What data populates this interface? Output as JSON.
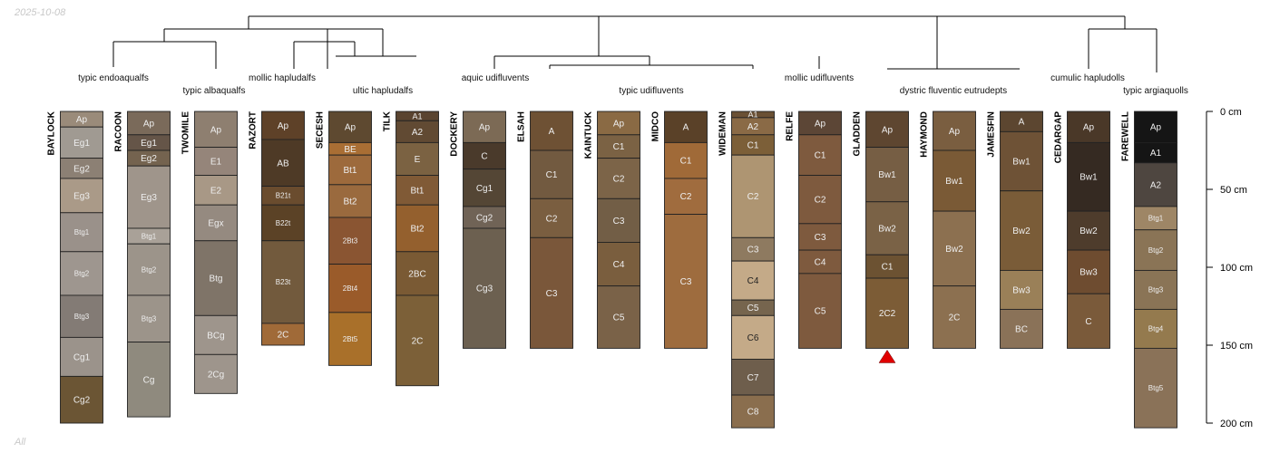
{
  "date_stamp": "2025-10-08",
  "footer_label": "All",
  "chart_data": {
    "type": "soil-profile-sketch",
    "depth_units": "cm",
    "depth_range": [
      0,
      200
    ],
    "depth_ticks": [
      {
        "depth": 0,
        "label": "0 cm"
      },
      {
        "depth": 50,
        "label": "50 cm"
      },
      {
        "depth": 100,
        "label": "100 cm"
      },
      {
        "depth": 150,
        "label": "150 cm"
      },
      {
        "depth": 200,
        "label": "200 cm"
      }
    ],
    "group_labels": [
      "typic endoaqualfs",
      "typic albaqualfs",
      "mollic hapludalfs",
      "ultic hapludalfs",
      "aquic udifluvents",
      "typic udifluvents",
      "mollic udifluvents",
      "dystric fluventic eutrudepts",
      "cumulic hapludolls",
      "typic argiaquolls"
    ],
    "markers": [
      {
        "profile": "GLADDEN",
        "symbol": "triangle",
        "color": "#e00000"
      }
    ],
    "profiles": [
      {
        "name": "BAYLOCK",
        "horizons": [
          {
            "name": "Ap",
            "top": 0,
            "bottom": 10,
            "color": "#9a8b7a"
          },
          {
            "name": "Eg1",
            "top": 10,
            "bottom": 30,
            "color": "#a09a92"
          },
          {
            "name": "Eg2",
            "top": 30,
            "bottom": 43,
            "color": "#8c8074"
          },
          {
            "name": "Eg3",
            "top": 43,
            "bottom": 65,
            "color": "#aa9a88"
          },
          {
            "name": "Btg1",
            "top": 65,
            "bottom": 90,
            "color": "#9a918a"
          },
          {
            "name": "Btg2",
            "top": 90,
            "bottom": 118,
            "color": "#9e968f"
          },
          {
            "name": "Btg3",
            "top": 118,
            "bottom": 145,
            "color": "#837b75"
          },
          {
            "name": "Cg1",
            "top": 145,
            "bottom": 170,
            "color": "#9b938b"
          },
          {
            "name": "Cg2",
            "top": 170,
            "bottom": 200,
            "color": "#6b5534"
          }
        ]
      },
      {
        "name": "RACOON",
        "horizons": [
          {
            "name": "Ap",
            "top": 0,
            "bottom": 15,
            "color": "#7a6a5a"
          },
          {
            "name": "Eg1",
            "top": 15,
            "bottom": 25,
            "color": "#655548"
          },
          {
            "name": "Eg2",
            "top": 25,
            "bottom": 35,
            "color": "#74634f"
          },
          {
            "name": "Eg3",
            "top": 35,
            "bottom": 75,
            "color": "#9f958b"
          },
          {
            "name": "Btg1",
            "top": 75,
            "bottom": 85,
            "color": "#a9a198"
          },
          {
            "name": "Btg2",
            "top": 85,
            "bottom": 118,
            "color": "#9c948a"
          },
          {
            "name": "Btg3",
            "top": 118,
            "bottom": 148,
            "color": "#9c948a"
          },
          {
            "name": "Cg",
            "top": 148,
            "bottom": 196,
            "color": "#8f8a7e"
          }
        ]
      },
      {
        "name": "TWOMILE",
        "horizons": [
          {
            "name": "Ap",
            "top": 0,
            "bottom": 23,
            "color": "#8e7f70"
          },
          {
            "name": "E1",
            "top": 23,
            "bottom": 41,
            "color": "#95857a"
          },
          {
            "name": "E2",
            "top": 41,
            "bottom": 60,
            "color": "#a89886"
          },
          {
            "name": "Egx",
            "top": 60,
            "bottom": 83,
            "color": "#958a80"
          },
          {
            "name": "Btg",
            "top": 83,
            "bottom": 131,
            "color": "#7f7468"
          },
          {
            "name": "BCg",
            "top": 131,
            "bottom": 156,
            "color": "#9e958c"
          },
          {
            "name": "2Cg",
            "top": 156,
            "bottom": 181,
            "color": "#9e958c"
          }
        ]
      },
      {
        "name": "RAZORT",
        "horizons": [
          {
            "name": "Ap",
            "top": 0,
            "bottom": 18,
            "color": "#5e4128"
          },
          {
            "name": "AB",
            "top": 18,
            "bottom": 48,
            "color": "#4e3a26"
          },
          {
            "name": "B21t",
            "top": 48,
            "bottom": 60,
            "color": "#6a4c2e"
          },
          {
            "name": "B22t",
            "top": 60,
            "bottom": 83,
            "color": "#5b4226"
          },
          {
            "name": "B23t",
            "top": 83,
            "bottom": 136,
            "color": "#725a3d"
          },
          {
            "name": "2C",
            "top": 136,
            "bottom": 150,
            "color": "#a06a38"
          }
        ]
      },
      {
        "name": "SECESH",
        "horizons": [
          {
            "name": "Ap",
            "top": 0,
            "bottom": 20,
            "color": "#5e4930"
          },
          {
            "name": "BE",
            "top": 20,
            "bottom": 28,
            "color": "#a96e34"
          },
          {
            "name": "Bt1",
            "top": 28,
            "bottom": 47,
            "color": "#9d6a3c"
          },
          {
            "name": "Bt2",
            "top": 47,
            "bottom": 68,
            "color": "#9a6a3e"
          },
          {
            "name": "2Bt3",
            "top": 68,
            "bottom": 98,
            "color": "#8a5532"
          },
          {
            "name": "2Bt4",
            "top": 98,
            "bottom": 129,
            "color": "#9a5b2a"
          },
          {
            "name": "2Bt5",
            "top": 129,
            "bottom": 163,
            "color": "#a9702a"
          }
        ]
      },
      {
        "name": "TILK",
        "horizons": [
          {
            "name": "A1",
            "top": 0,
            "bottom": 6,
            "color": "#5a4430"
          },
          {
            "name": "A2",
            "top": 6,
            "bottom": 20,
            "color": "#614a33"
          },
          {
            "name": "E",
            "top": 20,
            "bottom": 41,
            "color": "#7b6242"
          },
          {
            "name": "Bt1",
            "top": 41,
            "bottom": 60,
            "color": "#805a36"
          },
          {
            "name": "Bt2",
            "top": 60,
            "bottom": 90,
            "color": "#94602e"
          },
          {
            "name": "2BC",
            "top": 90,
            "bottom": 118,
            "color": "#7a5a34"
          },
          {
            "name": "2C",
            "top": 118,
            "bottom": 176,
            "color": "#7c6038"
          }
        ]
      },
      {
        "name": "DOCKERY",
        "horizons": [
          {
            "name": "Ap",
            "top": 0,
            "bottom": 20,
            "color": "#7c6a55"
          },
          {
            "name": "C",
            "top": 20,
            "bottom": 37,
            "color": "#4a3a2b"
          },
          {
            "name": "Cg1",
            "top": 37,
            "bottom": 61,
            "color": "#544635"
          },
          {
            "name": "Cg2",
            "top": 61,
            "bottom": 75,
            "color": "#706356"
          },
          {
            "name": "Cg3",
            "top": 75,
            "bottom": 152,
            "color": "#6c6050"
          }
        ]
      },
      {
        "name": "ELSAH",
        "horizons": [
          {
            "name": "A",
            "top": 0,
            "bottom": 25,
            "color": "#6e5134"
          },
          {
            "name": "C1",
            "top": 25,
            "bottom": 56,
            "color": "#725a40"
          },
          {
            "name": "C2",
            "top": 56,
            "bottom": 81,
            "color": "#7a5e40"
          },
          {
            "name": "C3",
            "top": 81,
            "bottom": 152,
            "color": "#7a573a"
          }
        ]
      },
      {
        "name": "KAINTUCK",
        "horizons": [
          {
            "name": "Ap",
            "top": 0,
            "bottom": 15,
            "color": "#8a6a44"
          },
          {
            "name": "C1",
            "top": 15,
            "bottom": 30,
            "color": "#7b6244"
          },
          {
            "name": "C2",
            "top": 30,
            "bottom": 56,
            "color": "#7c6448"
          },
          {
            "name": "C3",
            "top": 56,
            "bottom": 84,
            "color": "#725e46"
          },
          {
            "name": "C4",
            "top": 84,
            "bottom": 112,
            "color": "#7a5e3e"
          },
          {
            "name": "C5",
            "top": 112,
            "bottom": 152,
            "color": "#7a6248"
          }
        ]
      },
      {
        "name": "MIDCO",
        "horizons": [
          {
            "name": "A",
            "top": 0,
            "bottom": 20,
            "color": "#5a4128"
          },
          {
            "name": "C1",
            "top": 20,
            "bottom": 43,
            "color": "#a06a38"
          },
          {
            "name": "C2",
            "top": 43,
            "bottom": 66,
            "color": "#a06c3e"
          },
          {
            "name": "C3",
            "top": 66,
            "bottom": 152,
            "color": "#9e6c3e"
          }
        ]
      },
      {
        "name": "WIDEMAN",
        "horizons": [
          {
            "name": "A1",
            "top": 0,
            "bottom": 4,
            "color": "#6a5034"
          },
          {
            "name": "A2",
            "top": 4,
            "bottom": 15,
            "color": "#8a6a46"
          },
          {
            "name": "C1",
            "top": 15,
            "bottom": 28,
            "color": "#7c5f38"
          },
          {
            "name": "C2",
            "top": 28,
            "bottom": 81,
            "color": "#ae9572"
          },
          {
            "name": "C3",
            "top": 81,
            "bottom": 96,
            "color": "#8e7a60"
          },
          {
            "name": "C4",
            "top": 96,
            "bottom": 121,
            "color": "#c4aa88"
          },
          {
            "name": "C5",
            "top": 121,
            "bottom": 131,
            "color": "#76654e"
          },
          {
            "name": "C6",
            "top": 131,
            "bottom": 159,
            "color": "#c4aa88"
          },
          {
            "name": "C7",
            "top": 159,
            "bottom": 182,
            "color": "#6e5e4c"
          },
          {
            "name": "C8",
            "top": 182,
            "bottom": 203,
            "color": "#8a6e4e"
          }
        ]
      },
      {
        "name": "RELFE",
        "horizons": [
          {
            "name": "Ap",
            "top": 0,
            "bottom": 15,
            "color": "#5c4636"
          },
          {
            "name": "C1",
            "top": 15,
            "bottom": 41,
            "color": "#7e5a3e"
          },
          {
            "name": "C2",
            "top": 41,
            "bottom": 72,
            "color": "#7e5a3e"
          },
          {
            "name": "C3",
            "top": 72,
            "bottom": 89,
            "color": "#7e5a3e"
          },
          {
            "name": "C4",
            "top": 89,
            "bottom": 104,
            "color": "#7e5a3e"
          },
          {
            "name": "C5",
            "top": 104,
            "bottom": 152,
            "color": "#7e5a3e"
          }
        ]
      },
      {
        "name": "GLADDEN",
        "horizons": [
          {
            "name": "Ap",
            "top": 0,
            "bottom": 23,
            "color": "#5e4630"
          },
          {
            "name": "Bw1",
            "top": 23,
            "bottom": 58,
            "color": "#765e44"
          },
          {
            "name": "Bw2",
            "top": 58,
            "bottom": 92,
            "color": "#7a6246"
          },
          {
            "name": "C1",
            "top": 92,
            "bottom": 107,
            "color": "#6c5232"
          },
          {
            "name": "2C2",
            "top": 107,
            "bottom": 152,
            "color": "#7c5c36"
          }
        ]
      },
      {
        "name": "HAYMOND",
        "horizons": [
          {
            "name": "Ap",
            "top": 0,
            "bottom": 25,
            "color": "#7a5e40"
          },
          {
            "name": "Bw1",
            "top": 25,
            "bottom": 64,
            "color": "#7a5a36"
          },
          {
            "name": "Bw2",
            "top": 64,
            "bottom": 112,
            "color": "#8c7050"
          },
          {
            "name": "2C",
            "top": 112,
            "bottom": 152,
            "color": "#8c7050"
          }
        ]
      },
      {
        "name": "JAMESFIN",
        "horizons": [
          {
            "name": "A",
            "top": 0,
            "bottom": 13,
            "color": "#5c4630"
          },
          {
            "name": "Bw1",
            "top": 13,
            "bottom": 51,
            "color": "#6e5236"
          },
          {
            "name": "Bw2",
            "top": 51,
            "bottom": 102,
            "color": "#7a5c38"
          },
          {
            "name": "Bw3",
            "top": 102,
            "bottom": 127,
            "color": "#9a8058"
          },
          {
            "name": "BC",
            "top": 127,
            "bottom": 152,
            "color": "#8a7258"
          }
        ]
      },
      {
        "name": "CEDARGAP",
        "horizons": [
          {
            "name": "Ap",
            "top": 0,
            "bottom": 20,
            "color": "#4a3828"
          },
          {
            "name": "Bw1",
            "top": 20,
            "bottom": 64,
            "color": "#352a22"
          },
          {
            "name": "Bw2",
            "top": 64,
            "bottom": 89,
            "color": "#4e3c2c"
          },
          {
            "name": "Bw3",
            "top": 89,
            "bottom": 117,
            "color": "#6e4c30"
          },
          {
            "name": "C",
            "top": 117,
            "bottom": 152,
            "color": "#7a5a3a"
          }
        ]
      },
      {
        "name": "FAREWELL",
        "horizons": [
          {
            "name": "Ap",
            "top": 0,
            "bottom": 20,
            "color": "#151515"
          },
          {
            "name": "A1",
            "top": 20,
            "bottom": 33,
            "color": "#151515"
          },
          {
            "name": "A2",
            "top": 33,
            "bottom": 61,
            "color": "#4e4640"
          },
          {
            "name": "Btg1",
            "top": 61,
            "bottom": 76,
            "color": "#9e8666"
          },
          {
            "name": "Btg2",
            "top": 76,
            "bottom": 102,
            "color": "#8a7456"
          },
          {
            "name": "Btg3",
            "top": 102,
            "bottom": 127,
            "color": "#8a7456"
          },
          {
            "name": "Btg4",
            "top": 127,
            "bottom": 152,
            "color": "#947a4e"
          },
          {
            "name": "Btg5",
            "top": 152,
            "bottom": 203,
            "color": "#8a7258"
          }
        ]
      }
    ]
  }
}
